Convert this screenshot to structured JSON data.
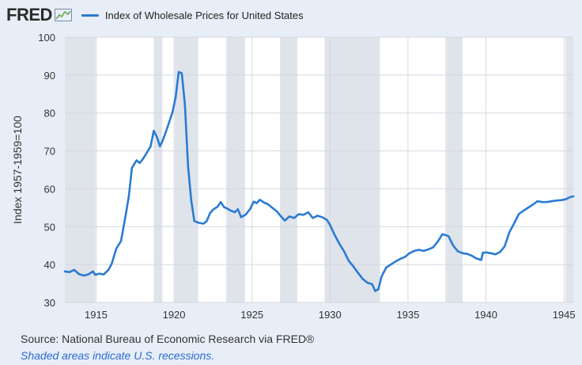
{
  "header": {
    "logo_text": "FRED",
    "series_title": "Index of Wholesale Prices for United States"
  },
  "colors": {
    "line": "#2a7bd3",
    "recession": "#dfe3ea",
    "plot_bg": "#ffffff",
    "page_bg": "#e8eef7",
    "grid": "#d4d8de"
  },
  "footer": {
    "source": "Source: National Bureau of Economic Research via FRED®",
    "note": "Shaded areas indicate U.S. recessions."
  },
  "chart_data": {
    "type": "line",
    "ylabel": "Index 1957-1959=100",
    "xlabel": "",
    "ylim": [
      30,
      100
    ],
    "xlim": [
      1913.0,
      1945.6
    ],
    "yticks": [
      30,
      40,
      50,
      60,
      70,
      80,
      90,
      100
    ],
    "xticks": [
      1915,
      1920,
      1925,
      1930,
      1935,
      1940,
      1945
    ],
    "grid": true,
    "legend": "top-left",
    "recessions": [
      [
        1913.0,
        1914.95
      ],
      [
        1918.7,
        1919.25
      ],
      [
        1920.05,
        1921.55
      ],
      [
        1923.35,
        1924.55
      ],
      [
        1926.8,
        1927.9
      ],
      [
        1929.65,
        1933.2
      ],
      [
        1937.4,
        1938.5
      ],
      [
        1945.1,
        1945.6
      ]
    ],
    "series": [
      {
        "name": "Index of Wholesale Prices for United States",
        "x": [
          1913.0,
          1913.3,
          1913.6,
          1913.9,
          1914.2,
          1914.5,
          1914.8,
          1914.95,
          1915.2,
          1915.5,
          1915.8,
          1916.0,
          1916.3,
          1916.6,
          1916.9,
          1917.1,
          1917.3,
          1917.6,
          1917.8,
          1918.0,
          1918.3,
          1918.5,
          1918.7,
          1918.9,
          1919.1,
          1919.3,
          1919.6,
          1919.9,
          1920.1,
          1920.3,
          1920.5,
          1920.7,
          1920.9,
          1921.1,
          1921.3,
          1921.6,
          1921.9,
          1922.1,
          1922.3,
          1922.5,
          1922.8,
          1923.0,
          1923.2,
          1923.4,
          1923.6,
          1923.9,
          1924.1,
          1924.3,
          1924.6,
          1924.9,
          1925.1,
          1925.3,
          1925.5,
          1925.8,
          1926.0,
          1926.3,
          1926.6,
          1926.9,
          1927.1,
          1927.4,
          1927.7,
          1928.0,
          1928.3,
          1928.6,
          1928.9,
          1929.2,
          1929.5,
          1929.8,
          1930.0,
          1930.3,
          1930.6,
          1930.9,
          1931.2,
          1931.5,
          1931.8,
          1932.1,
          1932.4,
          1932.7,
          1932.9,
          1933.1,
          1933.3,
          1933.6,
          1933.9,
          1934.2,
          1934.5,
          1934.8,
          1935.1,
          1935.4,
          1935.7,
          1936.0,
          1936.3,
          1936.6,
          1936.9,
          1937.2,
          1937.4,
          1937.6,
          1937.9,
          1938.2,
          1938.5,
          1938.8,
          1939.1,
          1939.4,
          1939.7,
          1939.8,
          1940.0,
          1940.3,
          1940.6,
          1940.9,
          1941.2,
          1941.5,
          1941.8,
          1942.1,
          1942.4,
          1942.7,
          1943.0,
          1943.3,
          1943.6,
          1943.9,
          1944.2,
          1944.5,
          1944.8,
          1945.1,
          1945.4,
          1945.6
        ],
        "values": [
          38.2,
          38.0,
          38.6,
          37.5,
          37.1,
          37.4,
          38.2,
          37.3,
          37.6,
          37.4,
          38.6,
          40.2,
          44.2,
          46.2,
          53.0,
          58.0,
          65.5,
          67.5,
          66.8,
          67.8,
          69.8,
          71.2,
          75.3,
          73.7,
          71.2,
          73.0,
          76.5,
          80.2,
          84.0,
          90.8,
          90.5,
          82.0,
          66.0,
          57.0,
          51.5,
          51.0,
          50.8,
          51.5,
          53.5,
          54.5,
          55.3,
          56.5,
          55.2,
          54.8,
          54.3,
          53.8,
          54.6,
          52.5,
          53.2,
          54.8,
          56.6,
          56.2,
          57.1,
          56.3,
          56.0,
          55.0,
          54.0,
          52.5,
          51.6,
          52.7,
          52.3,
          53.3,
          53.1,
          53.8,
          52.3,
          52.9,
          52.5,
          51.8,
          50.5,
          47.8,
          45.5,
          43.5,
          41.0,
          39.5,
          37.8,
          36.2,
          35.2,
          34.8,
          33.0,
          33.5,
          36.8,
          39.2,
          40.0,
          40.8,
          41.5,
          42.0,
          43.0,
          43.6,
          43.9,
          43.6,
          44.0,
          44.5,
          46.0,
          48.0,
          47.8,
          47.5,
          45.0,
          43.5,
          43.0,
          42.8,
          42.3,
          41.6,
          41.2,
          43.1,
          43.2,
          43.0,
          42.7,
          43.3,
          44.8,
          48.5,
          50.8,
          53.3,
          54.2,
          55.0,
          55.8,
          56.7,
          56.5,
          56.5,
          56.7,
          56.9,
          57.0,
          57.2,
          57.8,
          58.0
        ]
      }
    ]
  }
}
